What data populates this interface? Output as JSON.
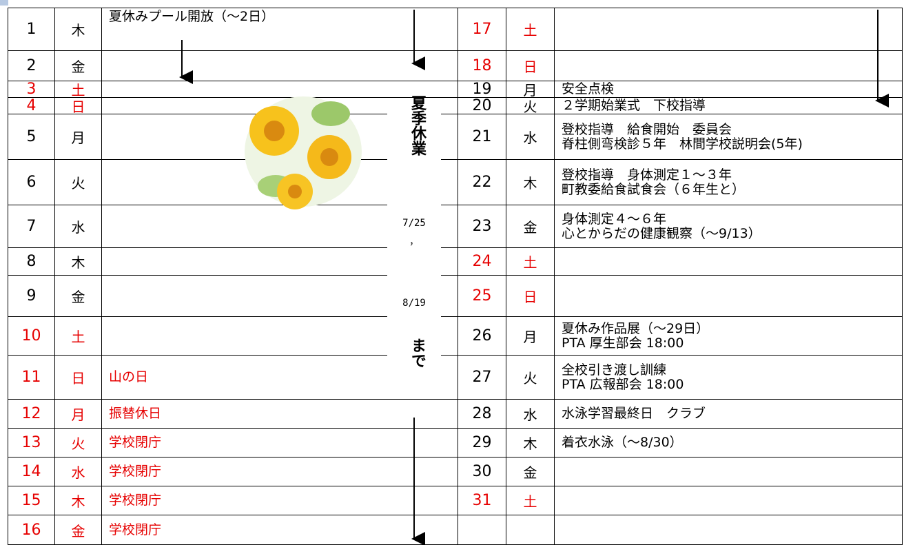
{
  "left": [
    {
      "day": "1",
      "weekday": "木",
      "event": [
        "夏休みプール開放（〜2日）"
      ]
    },
    {
      "day": "2",
      "weekday": "金",
      "event": []
    },
    {
      "day": "3",
      "weekday": "土",
      "event": [],
      "color": "#e60000"
    },
    {
      "day": "4",
      "weekday": "日",
      "event": [],
      "color": "#e60000"
    },
    {
      "day": "5",
      "weekday": "月",
      "event": []
    },
    {
      "day": "6",
      "weekday": "火",
      "event": []
    },
    {
      "day": "7",
      "weekday": "水",
      "event": []
    },
    {
      "day": "8",
      "weekday": "木",
      "event": []
    },
    {
      "day": "9",
      "weekday": "金",
      "event": []
    },
    {
      "day": "10",
      "weekday": "土",
      "event": [],
      "color": "#e60000"
    },
    {
      "day": "11",
      "weekday": "日",
      "event": [
        "山の日"
      ],
      "color": "#e60000"
    },
    {
      "day": "12",
      "weekday": "月",
      "event": [
        "振替休日"
      ],
      "color": "#e60000"
    },
    {
      "day": "13",
      "weekday": "火",
      "event": [
        "学校閉庁"
      ],
      "color": "#e60000"
    },
    {
      "day": "14",
      "weekday": "水",
      "event": [
        "学校閉庁"
      ],
      "color": "#e60000"
    },
    {
      "day": "15",
      "weekday": "木",
      "event": [
        "学校閉庁"
      ],
      "color": "#e60000"
    },
    {
      "day": "16",
      "weekday": "金",
      "event": [
        "学校閉庁"
      ],
      "color": "#e60000"
    }
  ],
  "right": [
    {
      "day": "17",
      "weekday": "土",
      "event": [],
      "color": "#e60000"
    },
    {
      "day": "18",
      "weekday": "日",
      "event": [],
      "color": "#e60000"
    },
    {
      "day": "19",
      "weekday": "月",
      "event": [
        "安全点検"
      ]
    },
    {
      "day": "20",
      "weekday": "火",
      "event": [
        "２学期始業式　下校指導"
      ]
    },
    {
      "day": "21",
      "weekday": "水",
      "event": [
        "登校指導　給食開始　委員会",
        "脊柱側弯検診５年　林間学校説明会(5年)"
      ]
    },
    {
      "day": "22",
      "weekday": "木",
      "event": [
        "登校指導　身体測定１〜３年",
        "町教委給食試食会（６年生と）"
      ]
    },
    {
      "day": "23",
      "weekday": "金",
      "event": [
        "身体測定４〜６年",
        "心とからだの健康観察（〜9/13）"
      ]
    },
    {
      "day": "24",
      "weekday": "土",
      "event": [],
      "color": "#e60000"
    },
    {
      "day": "25",
      "weekday": "日",
      "event": [],
      "color": "#e60000"
    },
    {
      "day": "26",
      "weekday": "月",
      "event": [
        "夏休み作品展（〜29日）",
        "PTA 厚生部会 18:00"
      ]
    },
    {
      "day": "27",
      "weekday": "火",
      "event": [
        "全校引き渡し訓練",
        "PTA 広報部会 18:00"
      ]
    },
    {
      "day": "28",
      "weekday": "水",
      "event": [
        "水泳学習最終日　クラブ"
      ]
    },
    {
      "day": "29",
      "weekday": "木",
      "event": [
        "着衣水泳（〜8/30）"
      ]
    },
    {
      "day": "30",
      "weekday": "金",
      "event": []
    },
    {
      "day": "31",
      "weekday": "土",
      "event": [],
      "color": "#e60000"
    },
    {
      "day": "",
      "weekday": "",
      "event": []
    }
  ],
  "vacation": {
    "title": "夏季休業",
    "from": "7/25",
    "separator": "，",
    "to": "8/19",
    "until": "まで"
  }
}
